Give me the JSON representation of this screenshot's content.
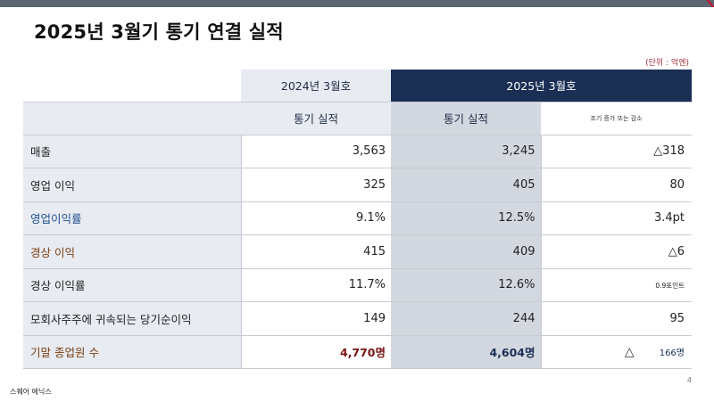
{
  "title": "2025년 3월기 통기 연결 실적",
  "unit_note": "(단위 : 억엔)",
  "header": {
    "col_2024": "2024년 3월호",
    "col_2025": "2025년 3월호",
    "sub_2024": "통기 실적",
    "sub_2025": "통기 실적",
    "sub_change": "조기 증가 또는 감소"
  },
  "rows": [
    {
      "label": "매출",
      "v2024": "3,563",
      "v2025": "3,245",
      "change": "△318"
    },
    {
      "label": "영업 이익",
      "v2024": "325",
      "v2025": "405",
      "change": "80"
    },
    {
      "label": "영업이익률",
      "v2024": "9.1%",
      "v2025": "12.5%",
      "change": "3.4pt"
    },
    {
      "label": "경상 이익",
      "v2024": "415",
      "v2025": "409",
      "change": "△6"
    },
    {
      "label": "경상 이익률",
      "v2024": "11.7%",
      "v2025": "12.6%",
      "change": "0.9포인트"
    },
    {
      "label": "모회사주주에 귀속되는 당기순이익",
      "v2024": "149",
      "v2025": "244",
      "change": "95"
    },
    {
      "label": "기말 종업원 수",
      "v2024": "4,770명",
      "v2025": "4,604명",
      "change_symbol": "△",
      "change": "166명"
    }
  ],
  "page_number": "4",
  "footer": "스퀘어 에닉스",
  "colors": {
    "header_navy": "#1b2f55",
    "highlight_column": "#d3d8e0",
    "label_bg": "#e8ebf1",
    "blue_label": "#1f4e8c",
    "brown_label": "#7a3e10",
    "accent_red": "#c8102e"
  }
}
